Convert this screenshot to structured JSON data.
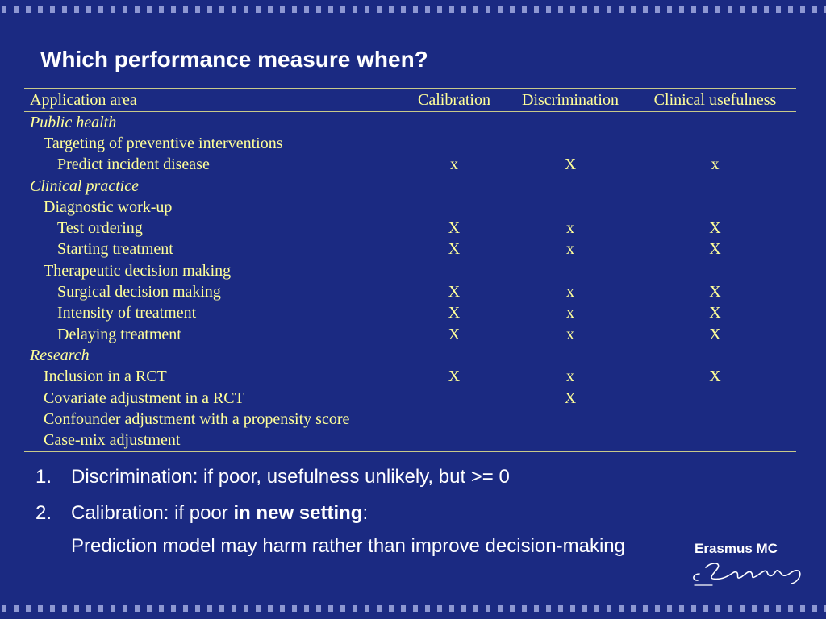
{
  "slide": {
    "title": "Which performance measure when?"
  },
  "table": {
    "headers": {
      "area": "Application area",
      "calibration": "Calibration",
      "discrimination": "Discrimination",
      "usefulness": "Clinical usefulness"
    },
    "rows": [
      {
        "label": "Public health",
        "level": 0,
        "cal": "",
        "dis": "",
        "use": ""
      },
      {
        "label": "Targeting of preventive interventions",
        "level": 1,
        "cal": "",
        "dis": "",
        "use": ""
      },
      {
        "label": "Predict incident disease",
        "level": 2,
        "cal": "x",
        "dis": "X",
        "use": "x"
      },
      {
        "label": "Clinical practice",
        "level": 0,
        "cal": "",
        "dis": "",
        "use": ""
      },
      {
        "label": "Diagnostic work-up",
        "level": 1,
        "cal": "",
        "dis": "",
        "use": ""
      },
      {
        "label": "Test ordering",
        "level": 2,
        "cal": "X",
        "dis": "x",
        "use": "X"
      },
      {
        "label": "Starting treatment",
        "level": 2,
        "cal": "X",
        "dis": "x",
        "use": "X"
      },
      {
        "label": "Therapeutic decision making",
        "level": 1,
        "cal": "",
        "dis": "",
        "use": ""
      },
      {
        "label": "Surgical decision making",
        "level": 2,
        "cal": "X",
        "dis": "x",
        "use": "X"
      },
      {
        "label": "Intensity of treatment",
        "level": 2,
        "cal": "X",
        "dis": "x",
        "use": "X"
      },
      {
        "label": "Delaying treatment",
        "level": 2,
        "cal": "X",
        "dis": "x",
        "use": "X"
      },
      {
        "label": "Research",
        "level": 0,
        "cal": "",
        "dis": "",
        "use": ""
      },
      {
        "label": "Inclusion in a RCT",
        "level": 1,
        "cal": "X",
        "dis": "x",
        "use": "X"
      },
      {
        "label": "Covariate adjustment in a RCT",
        "level": 1,
        "cal": "",
        "dis": "X",
        "use": ""
      },
      {
        "label": "Confounder adjustment with a propensity score",
        "level": 1,
        "cal": "",
        "dis": "",
        "use": ""
      },
      {
        "label": "Case-mix adjustment",
        "level": 1,
        "cal": "",
        "dis": "",
        "use": ""
      }
    ]
  },
  "notes": {
    "item1": {
      "number": "1.",
      "text": "Discrimination: if poor, usefulness unlikely, but >= 0"
    },
    "item2": {
      "number": "2.",
      "text_prefix": "Calibration: if poor ",
      "text_bold": "in new setting",
      "text_suffix": ":",
      "line2": "Prediction model may harm rather than improve decision-making"
    }
  },
  "logo": {
    "text": "Erasmus MC"
  },
  "colors": {
    "background": "#1b2a82",
    "table_text": "#ffff99",
    "body_text": "#ffffff",
    "border_dots": "#8d97d2"
  }
}
